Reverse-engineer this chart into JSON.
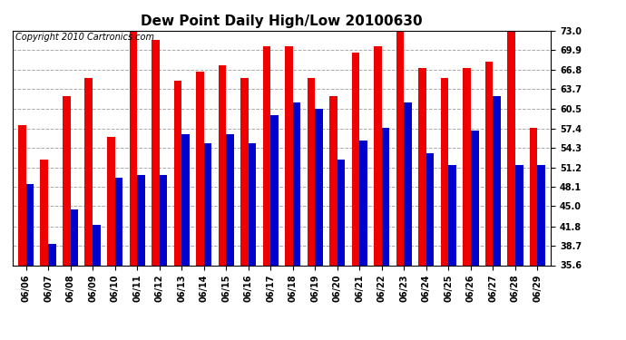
{
  "title": "Dew Point Daily High/Low 20100630",
  "copyright": "Copyright 2010 Cartronics.com",
  "dates": [
    "06/06",
    "06/07",
    "06/08",
    "06/09",
    "06/10",
    "06/11",
    "06/12",
    "06/13",
    "06/14",
    "06/15",
    "06/16",
    "06/17",
    "06/18",
    "06/19",
    "06/20",
    "06/21",
    "06/22",
    "06/23",
    "06/24",
    "06/25",
    "06/26",
    "06/27",
    "06/28",
    "06/29"
  ],
  "high": [
    58.0,
    52.5,
    62.5,
    65.5,
    56.0,
    74.0,
    71.5,
    65.0,
    66.5,
    67.5,
    65.5,
    70.5,
    70.5,
    65.5,
    62.5,
    69.5,
    70.5,
    73.0,
    67.0,
    65.5,
    67.0,
    68.0,
    73.0,
    57.5
  ],
  "low": [
    48.5,
    39.0,
    44.5,
    42.0,
    49.5,
    50.0,
    50.0,
    56.5,
    55.0,
    56.5,
    55.0,
    59.5,
    61.5,
    60.5,
    52.5,
    55.5,
    57.5,
    61.5,
    53.5,
    51.5,
    57.0,
    62.5,
    51.5,
    51.5
  ],
  "bar_high_color": "#ee0000",
  "bar_low_color": "#0000cc",
  "bg_color": "#ffffff",
  "grid_color": "#aaaaaa",
  "ytick_labels": [
    "35.6",
    "38.7",
    "41.8",
    "45.0",
    "48.1",
    "51.2",
    "54.3",
    "57.4",
    "60.5",
    "63.7",
    "66.8",
    "69.9",
    "73.0"
  ],
  "ytick_values": [
    35.6,
    38.7,
    41.8,
    45.0,
    48.1,
    51.2,
    54.3,
    57.4,
    60.5,
    63.7,
    66.8,
    69.9,
    73.0
  ],
  "ymin": 35.6,
  "ymax": 73.0,
  "title_fontsize": 11,
  "copyright_fontsize": 7,
  "tick_fontsize": 7,
  "bar_width": 0.35,
  "figwidth": 6.9,
  "figheight": 3.75,
  "dpi": 100
}
